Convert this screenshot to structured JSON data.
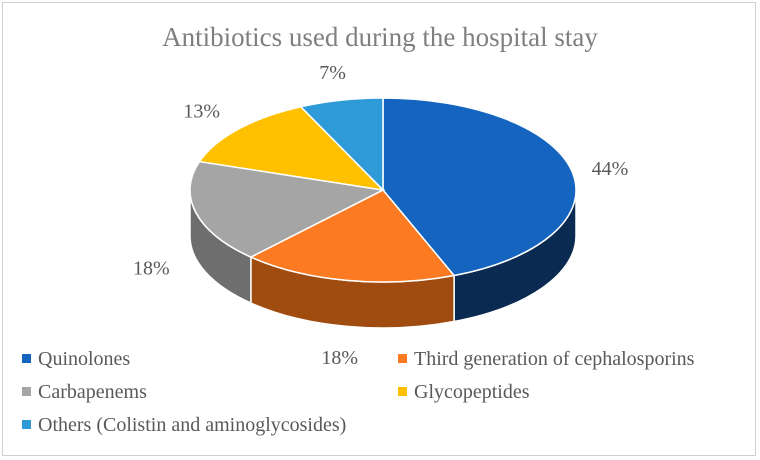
{
  "chart_data": {
    "type": "pie",
    "title": "Antibiotics used during the hospital stay",
    "categories": [
      "Quinolones",
      "Third generation of cephalosporins",
      "Carbapenems",
      "Glycopeptides",
      "Others (Colistin and aminoglycosides)"
    ],
    "values": [
      44,
      18,
      18,
      13,
      7
    ],
    "data_labels": [
      "44%",
      "18%",
      "18%",
      "13%",
      "7%"
    ],
    "colors": [
      "#1565c0",
      "#fb7a22",
      "#a5a5a5",
      "#ffc000",
      "#2e9ad8"
    ],
    "side_colors": [
      "#0a2a52",
      "#a04c10",
      "#6e6e6e",
      "#a07800",
      "#1a5f88"
    ],
    "style": "3d-pie",
    "legend_position": "bottom"
  }
}
